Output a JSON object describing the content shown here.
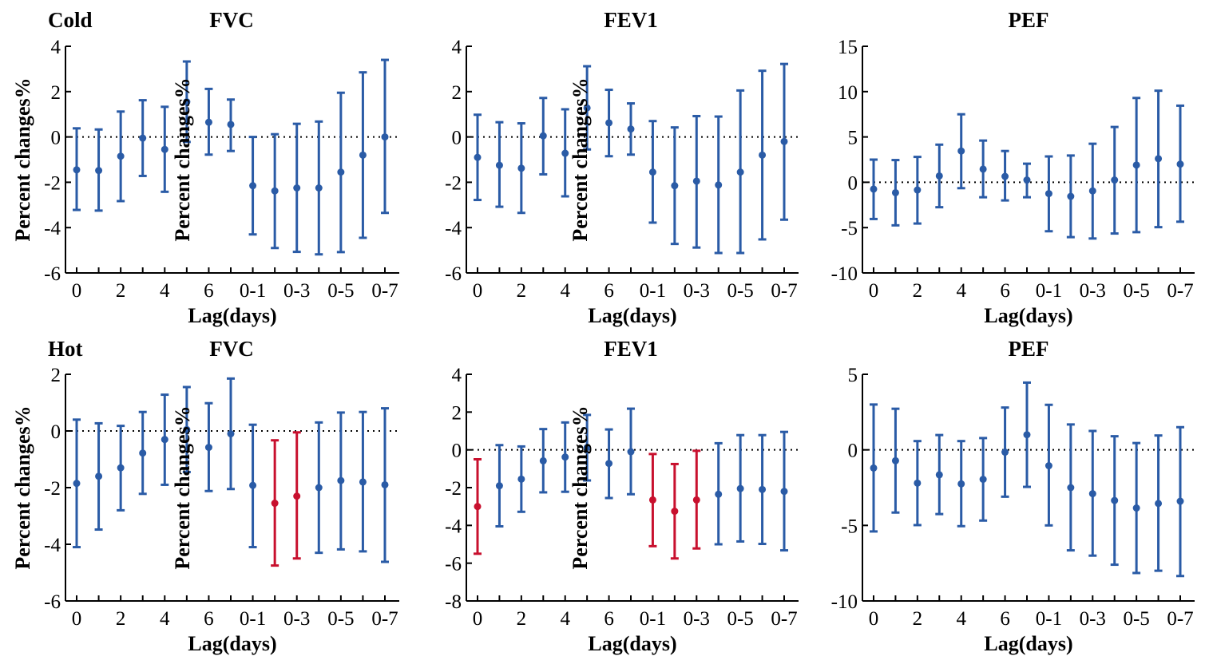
{
  "categories": [
    "0",
    "1",
    "2",
    "3",
    "4",
    "5",
    "6",
    "7",
    "0-1",
    "0-2",
    "0-3",
    "0-4",
    "0-5",
    "0-6",
    "0-7"
  ],
  "tick_labels": [
    "0",
    "2",
    "4",
    "6",
    "0-1",
    "0-3",
    "0-5",
    "0-7"
  ],
  "colors": {
    "normal": "#2a5ba6",
    "significant": "#c8102e",
    "axis": "#000000",
    "reference_line": "#000000"
  },
  "chart_data": [
    {
      "type": "scatter",
      "panel": "cold-fvc",
      "group_label": "Cold",
      "title": "FVC",
      "xlabel": "Lag(days)",
      "ylabel": "Percent changes%",
      "ylim": [
        -6,
        4
      ],
      "yticks": [
        -6,
        -4,
        -2,
        0,
        2,
        4
      ],
      "estimate": [
        -1.45,
        -1.48,
        -0.85,
        -0.05,
        -0.55,
        1.55,
        0.65,
        0.55,
        -2.15,
        -2.38,
        -2.25,
        -2.25,
        -1.55,
        -0.8,
        0.0
      ],
      "lower": [
        -3.22,
        -3.25,
        -2.83,
        -1.72,
        -2.42,
        -0.22,
        -0.78,
        -0.62,
        -4.3,
        -4.9,
        -5.07,
        -5.18,
        -5.08,
        -4.45,
        -3.35
      ],
      "upper": [
        0.38,
        0.33,
        1.12,
        1.62,
        1.33,
        3.33,
        2.12,
        1.65,
        0.0,
        0.12,
        0.58,
        0.68,
        1.95,
        2.85,
        3.4
      ],
      "significant": [
        false,
        false,
        false,
        false,
        false,
        false,
        false,
        false,
        false,
        false,
        false,
        false,
        false,
        false,
        false
      ]
    },
    {
      "type": "scatter",
      "panel": "cold-fev1",
      "title": "FEV1",
      "xlabel": "Lag(days)",
      "ylabel": "Percent changes%",
      "ylim": [
        -6,
        4
      ],
      "yticks": [
        -6,
        -4,
        -2,
        0,
        2,
        4
      ],
      "estimate": [
        -0.9,
        -1.25,
        -1.38,
        0.05,
        -0.72,
        1.28,
        0.62,
        0.35,
        -1.55,
        -2.15,
        -1.95,
        -2.12,
        -1.55,
        -0.8,
        -0.2
      ],
      "lower": [
        -2.78,
        -3.08,
        -3.35,
        -1.65,
        -2.62,
        -0.55,
        -0.85,
        -0.78,
        -3.78,
        -4.72,
        -4.88,
        -5.12,
        -5.12,
        -4.52,
        -3.65
      ],
      "upper": [
        0.98,
        0.65,
        0.6,
        1.72,
        1.22,
        3.12,
        2.08,
        1.48,
        0.7,
        0.42,
        0.92,
        0.9,
        2.05,
        2.92,
        3.22
      ],
      "significant": [
        false,
        false,
        false,
        false,
        false,
        false,
        false,
        false,
        false,
        false,
        false,
        false,
        false,
        false,
        false
      ]
    },
    {
      "type": "scatter",
      "panel": "cold-pef",
      "title": "PEF",
      "xlabel": "Lag(days)",
      "ylabel": "Percent changes%",
      "ylim": [
        -10,
        15
      ],
      "yticks": [
        -10,
        -5,
        0,
        5,
        10,
        15
      ],
      "estimate": [
        -0.75,
        -1.15,
        -0.85,
        0.7,
        3.45,
        1.45,
        0.65,
        0.25,
        -1.25,
        -1.55,
        -0.95,
        0.25,
        1.9,
        2.6,
        2.0
      ],
      "lower": [
        -4.05,
        -4.75,
        -4.55,
        -2.75,
        -0.65,
        -1.65,
        -2.0,
        -1.65,
        -5.4,
        -6.05,
        -6.2,
        -5.65,
        -5.5,
        -4.95,
        -4.35
      ],
      "upper": [
        2.5,
        2.45,
        2.8,
        4.15,
        7.5,
        4.6,
        3.45,
        2.05,
        2.85,
        2.95,
        4.25,
        6.1,
        9.3,
        10.1,
        8.45
      ],
      "significant": [
        false,
        false,
        false,
        false,
        false,
        false,
        false,
        false,
        false,
        false,
        false,
        false,
        false,
        false,
        false
      ]
    },
    {
      "type": "scatter",
      "panel": "hot-fvc",
      "group_label": "Hot",
      "title": "FVC",
      "xlabel": "Lag(days)",
      "ylabel": "Percent changes%",
      "ylim": [
        -6,
        2
      ],
      "yticks": [
        -6,
        -4,
        -2,
        0,
        2
      ],
      "estimate": [
        -1.85,
        -1.6,
        -1.3,
        -0.78,
        -0.3,
        0.05,
        -0.58,
        -0.1,
        -1.92,
        -2.55,
        -2.3,
        -2.0,
        -1.75,
        -1.8,
        -1.9
      ],
      "lower": [
        -4.1,
        -3.48,
        -2.8,
        -2.22,
        -1.9,
        -1.45,
        -2.12,
        -2.05,
        -4.1,
        -4.75,
        -4.5,
        -4.3,
        -4.18,
        -4.25,
        -4.62
      ],
      "upper": [
        0.4,
        0.27,
        0.18,
        0.67,
        1.28,
        1.55,
        0.98,
        1.85,
        0.22,
        -0.33,
        -0.05,
        0.3,
        0.65,
        0.67,
        0.8
      ],
      "significant": [
        false,
        false,
        false,
        false,
        false,
        false,
        false,
        false,
        false,
        true,
        true,
        false,
        false,
        false,
        false
      ]
    },
    {
      "type": "scatter",
      "panel": "hot-fev1",
      "title": "FEV1",
      "xlabel": "Lag(days)",
      "ylabel": "Percent changes%",
      "ylim": [
        -8,
        4
      ],
      "yticks": [
        -8,
        -6,
        -4,
        -2,
        0,
        2,
        4
      ],
      "estimate": [
        -3.0,
        -1.9,
        -1.55,
        -0.58,
        -0.38,
        0.12,
        -0.72,
        -0.1,
        -2.65,
        -3.25,
        -2.65,
        -2.35,
        -2.05,
        -2.1,
        -2.2
      ],
      "lower": [
        -5.5,
        -4.05,
        -3.28,
        -2.25,
        -2.22,
        -1.62,
        -2.55,
        -2.35,
        -5.1,
        -5.75,
        -5.22,
        -5.0,
        -4.85,
        -4.98,
        -5.32
      ],
      "upper": [
        -0.5,
        0.25,
        0.18,
        1.1,
        1.45,
        1.85,
        1.08,
        2.18,
        -0.22,
        -0.75,
        -0.05,
        0.35,
        0.78,
        0.78,
        0.95
      ],
      "significant": [
        true,
        false,
        false,
        false,
        false,
        false,
        false,
        false,
        true,
        true,
        true,
        false,
        false,
        false,
        false
      ]
    },
    {
      "type": "scatter",
      "panel": "hot-pef",
      "title": "PEF",
      "xlabel": "Lag(days)",
      "ylabel": "Percent changes%",
      "ylim": [
        -10,
        5
      ],
      "yticks": [
        -10,
        -5,
        0,
        5
      ],
      "estimate": [
        -1.2,
        -0.72,
        -2.2,
        -1.65,
        -2.25,
        -1.95,
        -0.15,
        1.0,
        -1.05,
        -2.5,
        -2.9,
        -3.35,
        -3.85,
        -3.55,
        -3.4
      ],
      "lower": [
        -5.4,
        -4.15,
        -4.98,
        -4.25,
        -5.05,
        -4.68,
        -3.1,
        -2.45,
        -5.0,
        -6.65,
        -7.0,
        -7.6,
        -8.15,
        -8.0,
        -8.35
      ],
      "upper": [
        3.0,
        2.72,
        0.58,
        0.98,
        0.58,
        0.78,
        2.8,
        4.45,
        2.98,
        1.68,
        1.25,
        0.9,
        0.45,
        0.95,
        1.5
      ],
      "significant": [
        false,
        false,
        false,
        false,
        false,
        false,
        false,
        false,
        false,
        false,
        false,
        false,
        false,
        false,
        false
      ]
    }
  ]
}
